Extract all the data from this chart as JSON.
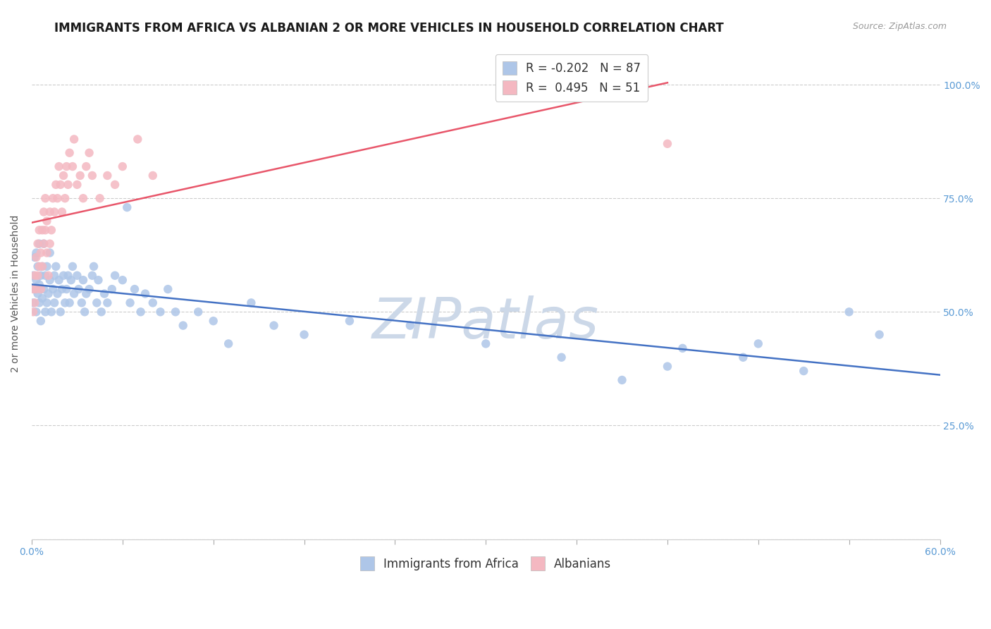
{
  "title": "IMMIGRANTS FROM AFRICA VS ALBANIAN 2 OR MORE VEHICLES IN HOUSEHOLD CORRELATION CHART",
  "source_text": "Source: ZipAtlas.com",
  "ylabel": "2 or more Vehicles in Household",
  "right_yticklabels": [
    "",
    "25.0%",
    "50.0%",
    "75.0%",
    "100.0%"
  ],
  "xlim": [
    0.0,
    0.6
  ],
  "ylim": [
    0.0,
    1.08
  ],
  "series_africa": {
    "color": "#aec6e8",
    "line_color": "#4472c4",
    "x": [
      0.001,
      0.001,
      0.002,
      0.002,
      0.003,
      0.003,
      0.003,
      0.004,
      0.004,
      0.005,
      0.005,
      0.005,
      0.006,
      0.006,
      0.007,
      0.007,
      0.008,
      0.008,
      0.009,
      0.009,
      0.01,
      0.01,
      0.011,
      0.012,
      0.012,
      0.013,
      0.014,
      0.015,
      0.015,
      0.016,
      0.017,
      0.018,
      0.019,
      0.02,
      0.021,
      0.022,
      0.023,
      0.024,
      0.025,
      0.026,
      0.027,
      0.028,
      0.03,
      0.031,
      0.033,
      0.034,
      0.035,
      0.036,
      0.038,
      0.04,
      0.041,
      0.043,
      0.044,
      0.046,
      0.048,
      0.05,
      0.053,
      0.055,
      0.06,
      0.063,
      0.065,
      0.068,
      0.072,
      0.075,
      0.08,
      0.085,
      0.09,
      0.095,
      0.1,
      0.11,
      0.12,
      0.13,
      0.145,
      0.16,
      0.18,
      0.21,
      0.25,
      0.3,
      0.35,
      0.39,
      0.43,
      0.47,
      0.51,
      0.54,
      0.56,
      0.48,
      0.42
    ],
    "y": [
      0.52,
      0.58,
      0.55,
      0.62,
      0.5,
      0.57,
      0.63,
      0.54,
      0.6,
      0.56,
      0.52,
      0.65,
      0.48,
      0.58,
      0.53,
      0.6,
      0.55,
      0.65,
      0.5,
      0.58,
      0.52,
      0.6,
      0.54,
      0.57,
      0.63,
      0.5,
      0.55,
      0.58,
      0.52,
      0.6,
      0.54,
      0.57,
      0.5,
      0.55,
      0.58,
      0.52,
      0.55,
      0.58,
      0.52,
      0.57,
      0.6,
      0.54,
      0.58,
      0.55,
      0.52,
      0.57,
      0.5,
      0.54,
      0.55,
      0.58,
      0.6,
      0.52,
      0.57,
      0.5,
      0.54,
      0.52,
      0.55,
      0.58,
      0.57,
      0.73,
      0.52,
      0.55,
      0.5,
      0.54,
      0.52,
      0.5,
      0.55,
      0.5,
      0.47,
      0.5,
      0.48,
      0.43,
      0.52,
      0.47,
      0.45,
      0.48,
      0.47,
      0.43,
      0.4,
      0.35,
      0.42,
      0.4,
      0.37,
      0.5,
      0.45,
      0.43,
      0.38
    ]
  },
  "series_albanian": {
    "color": "#f4b8c1",
    "line_color": "#e8566a",
    "x": [
      0.001,
      0.001,
      0.002,
      0.002,
      0.003,
      0.003,
      0.004,
      0.004,
      0.005,
      0.005,
      0.006,
      0.006,
      0.007,
      0.007,
      0.008,
      0.008,
      0.009,
      0.009,
      0.01,
      0.01,
      0.011,
      0.012,
      0.012,
      0.013,
      0.014,
      0.015,
      0.016,
      0.017,
      0.018,
      0.019,
      0.02,
      0.021,
      0.022,
      0.023,
      0.024,
      0.025,
      0.027,
      0.028,
      0.03,
      0.032,
      0.034,
      0.036,
      0.038,
      0.04,
      0.045,
      0.05,
      0.055,
      0.06,
      0.07,
      0.08,
      0.42
    ],
    "y": [
      0.5,
      0.55,
      0.52,
      0.58,
      0.55,
      0.62,
      0.58,
      0.65,
      0.6,
      0.68,
      0.55,
      0.63,
      0.6,
      0.68,
      0.65,
      0.72,
      0.68,
      0.75,
      0.63,
      0.7,
      0.58,
      0.65,
      0.72,
      0.68,
      0.75,
      0.72,
      0.78,
      0.75,
      0.82,
      0.78,
      0.72,
      0.8,
      0.75,
      0.82,
      0.78,
      0.85,
      0.82,
      0.88,
      0.78,
      0.8,
      0.75,
      0.82,
      0.85,
      0.8,
      0.75,
      0.8,
      0.78,
      0.82,
      0.88,
      0.8,
      0.87
    ]
  },
  "watermark": "ZIPatlas",
  "watermark_color": "#ccd8e8",
  "background_color": "#ffffff",
  "grid_color": "#cccccc",
  "title_fontsize": 12,
  "axis_label_fontsize": 10,
  "tick_fontsize": 10,
  "legend_fontsize": 12
}
